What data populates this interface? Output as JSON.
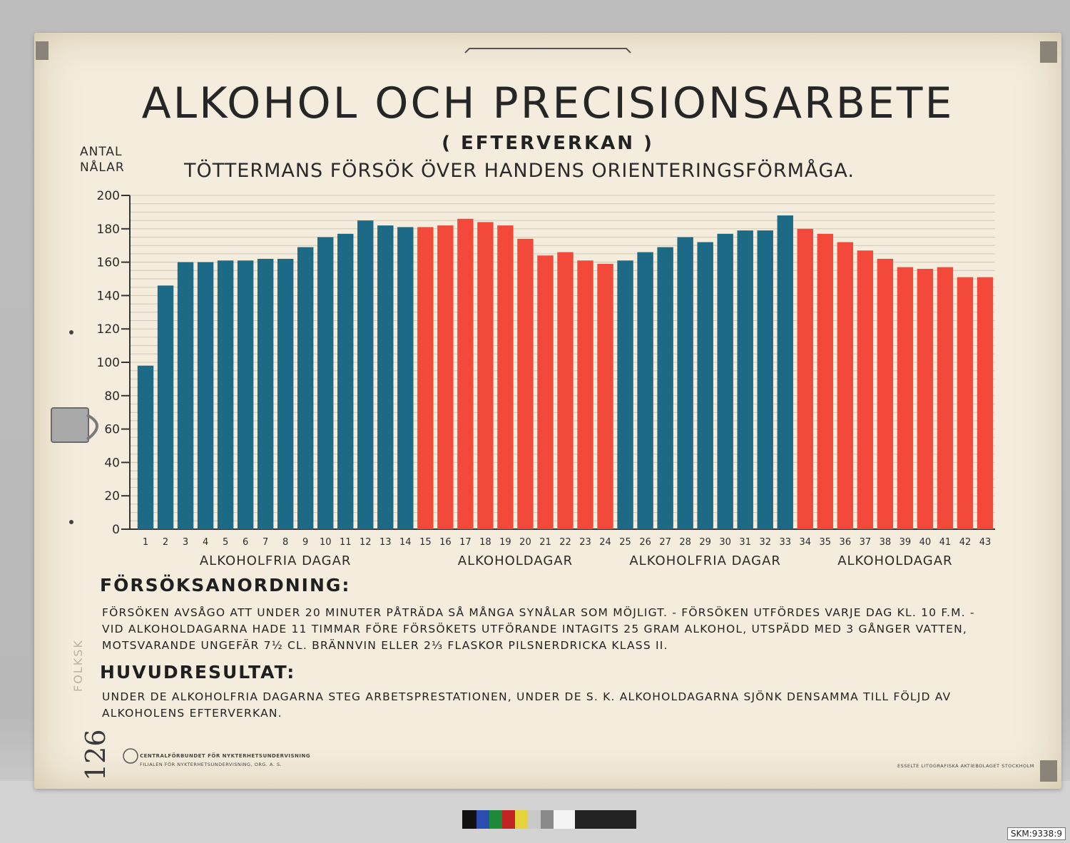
{
  "poster": {
    "title": "ALKOHOL OCH PRECISIONSARBETE",
    "subtitle": "( EFTERVERKAN )",
    "heading": "TÖTTERMANS FÖRSÖK ÖVER HANDENS ORIENTERINGSFÖRMÅGA.",
    "ylabel_line1": "ANTAL",
    "ylabel_line2": "NÅLAR",
    "setup_title": "FÖRSÖKSANORDNING:",
    "setup_text": "Försöken avsågo att under 20 minuter påträda så många synålar som möjligt. - Försöken utfördes varje dag kl. 10 f.m. - Vid alkoholdagarna hade 11 timmar före försökets utförande intagits 25 gram alkohol, utspädd med 3 gånger vatten, motsvarande ungefär 7½ cl. brännvin eller 2⅓ flaskor pilsnerdricka klass II.",
    "result_title": "HUVUDRESULTAT:",
    "result_text": "Under de alkoholfria dagarna steg arbetsprestationen, under de s. k. alkoholdagarna sjönk densamma till följd av alkoholens efterverkan.",
    "publisher": "CENTRALFÖRBUNDET FÖR NYKTERHETSUNDERVISNING",
    "publisher_sub": "FILIALEN FÖR NYKTERHETSUNDERVISNING, ORG. A. S.",
    "printer": "ESSELTE  LITOGRAFISKA  AKTIEBOLAGET  STOCKHOLM",
    "side_label": "FOLKSK",
    "catalog_number": "126"
  },
  "accession_label": "SKM:9338:9",
  "colors": {
    "alcohol_free": "#1c6a86",
    "alcohol": "#f2493a",
    "paper": "#f4eddd",
    "ink": "#262626"
  },
  "chart_data": {
    "type": "bar",
    "title": "ALKOHOL OCH PRECISIONSARBETE",
    "ylabel": "ANTAL NÅLAR",
    "ylim": [
      0,
      200
    ],
    "yticks": [
      0,
      20,
      40,
      60,
      80,
      100,
      120,
      140,
      160,
      180,
      200
    ],
    "grid": true,
    "categories": [
      "1",
      "2",
      "3",
      "4",
      "5",
      "6",
      "7",
      "8",
      "9",
      "10",
      "11",
      "12",
      "13",
      "14",
      "15",
      "16",
      "17",
      "18",
      "19",
      "20",
      "21",
      "22",
      "23",
      "24",
      "25",
      "26",
      "27",
      "28",
      "29",
      "30",
      "31",
      "32",
      "33",
      "34",
      "35",
      "36",
      "37",
      "38",
      "39",
      "40",
      "41",
      "42",
      "43"
    ],
    "values": [
      98,
      146,
      160,
      160,
      161,
      161,
      162,
      162,
      169,
      175,
      177,
      185,
      182,
      181,
      181,
      182,
      186,
      184,
      182,
      174,
      164,
      166,
      161,
      159,
      161,
      166,
      169,
      175,
      172,
      177,
      179,
      179,
      188,
      180,
      177,
      172,
      167,
      162,
      157,
      156,
      157,
      151,
      151
    ],
    "groups": [
      {
        "label": "ALKOHOLFRIA DAGAR",
        "start": 1,
        "end": 14,
        "color": "#1c6a86"
      },
      {
        "label": "ALKOHOLDAGAR",
        "start": 15,
        "end": 24,
        "color": "#f2493a"
      },
      {
        "label": "ALKOHOLFRIA DAGAR",
        "start": 25,
        "end": 33,
        "color": "#1c6a86"
      },
      {
        "label": "ALKOHOLDAGAR",
        "start": 34,
        "end": 43,
        "color": "#f2493a"
      }
    ]
  }
}
